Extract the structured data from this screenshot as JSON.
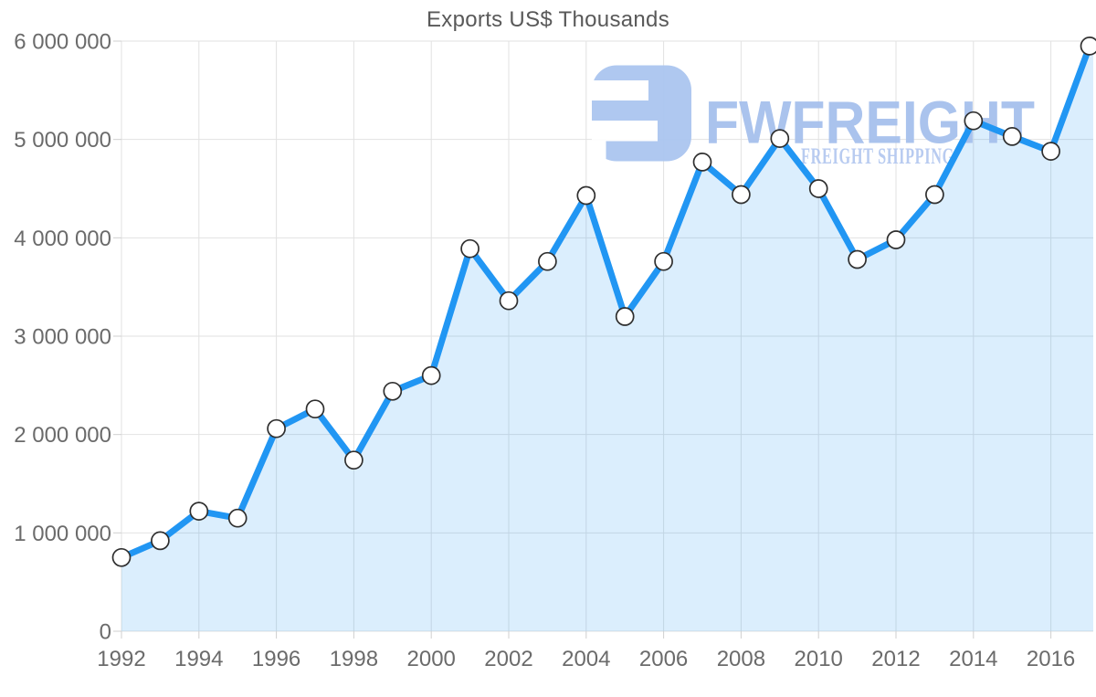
{
  "title": "Exports US$ Thousands",
  "watermark": {
    "brand": "FWFREIGHT",
    "tagline": "FREIGHT SHIPPING",
    "brand_color": "#a6c0ed",
    "tagline_color": "#b5c9f0",
    "icon_color": "#abc6f0"
  },
  "chart_data": {
    "type": "area",
    "title": "Exports US$ Thousands",
    "x": [
      1992,
      1993,
      1994,
      1995,
      1996,
      1997,
      1998,
      1999,
      2000,
      2001,
      2002,
      2003,
      2004,
      2005,
      2006,
      2007,
      2008,
      2009,
      2010,
      2011,
      2012,
      2013,
      2014,
      2015,
      2016,
      2017
    ],
    "series": [
      {
        "name": "Exports US$ Thousands",
        "values": [
          750000,
          920000,
          1220000,
          1150000,
          2060000,
          2260000,
          1740000,
          2440000,
          2600000,
          3890000,
          3360000,
          3760000,
          4430000,
          3200000,
          3760000,
          4770000,
          4440000,
          5010000,
          4500000,
          3780000,
          3980000,
          4440000,
          5190000,
          5030000,
          4880000,
          5950000
        ]
      }
    ],
    "ylim": [
      0,
      6000000
    ],
    "ytick_interval": 1000000,
    "ytick_values": [
      0,
      1000000,
      2000000,
      3000000,
      4000000,
      5000000,
      6000000
    ],
    "ytick_labels": [
      "0",
      "1 000 000",
      "2 000 000",
      "3 000 000",
      "4 000 000",
      "5 000 000",
      "6 000 000"
    ],
    "xtick_values": [
      1992,
      1994,
      1996,
      1998,
      2000,
      2002,
      2004,
      2006,
      2008,
      2010,
      2012,
      2014,
      2016
    ],
    "xtick_labels": [
      "1992",
      "1994",
      "1996",
      "1998",
      "2000",
      "2002",
      "2004",
      "2006",
      "2008",
      "2010",
      "2012",
      "2014",
      "2016"
    ],
    "grid": true,
    "legend": "none",
    "line_color": "#2196f3",
    "fill_color": "#2196f3",
    "fill_opacity": 0.16,
    "grid_color": "#e2e2e2",
    "tick_color": "#cfcfcf",
    "marker_fill": "#ffffff",
    "marker_stroke": "#2f2f2f",
    "label_color": "#6b6b6b"
  }
}
